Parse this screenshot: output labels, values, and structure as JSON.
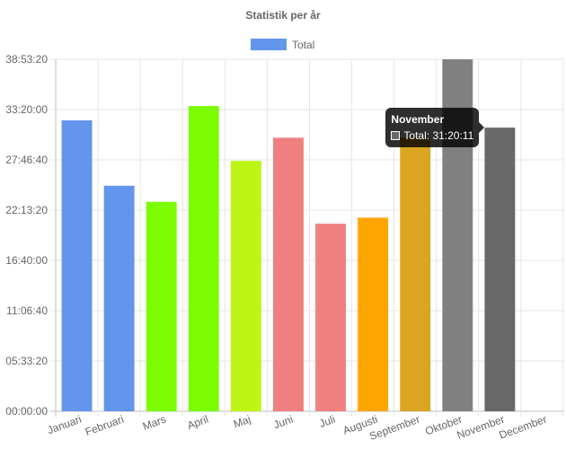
{
  "chart_data": {
    "type": "bar",
    "title": "Statistik per år",
    "legend": {
      "label": "Total",
      "color": "#6495ED",
      "position": "top-center"
    },
    "categories": [
      "Januari",
      "Februari",
      "Mars",
      "April",
      "Maj",
      "Juni",
      "Juli",
      "Augusti",
      "September",
      "Oktober",
      "November",
      "December"
    ],
    "series": [
      {
        "name": "Total",
        "values_seconds": [
          115700,
          89700,
          83300,
          121400,
          99600,
          108800,
          74600,
          77000,
          108800,
          139980,
          112811,
          0
        ],
        "colors": [
          "#6495ED",
          "#6495ED",
          "#7CFC00",
          "#7CFC00",
          "#BCF514",
          "#F08080",
          "#F08080",
          "#FFA500",
          "#DAA520",
          "#808080",
          "#696969",
          "#696969"
        ]
      }
    ],
    "y_axis": {
      "unit": "hh:mm:ss",
      "range_seconds": [
        0,
        140000
      ],
      "tick_values_seconds": [
        0,
        20000,
        40000,
        60000,
        80000,
        100000,
        120000,
        140000
      ],
      "tick_labels": [
        "00:00:00",
        "05:33:20",
        "11:06:40",
        "16:40:00",
        "22:13:20",
        "27:46:40",
        "33:20:00",
        "38:53:20"
      ]
    },
    "grid": true
  },
  "tooltip": {
    "title": "November",
    "label": "Total: 31:20:11",
    "swatch_color": "#696969",
    "category_index": 10
  }
}
